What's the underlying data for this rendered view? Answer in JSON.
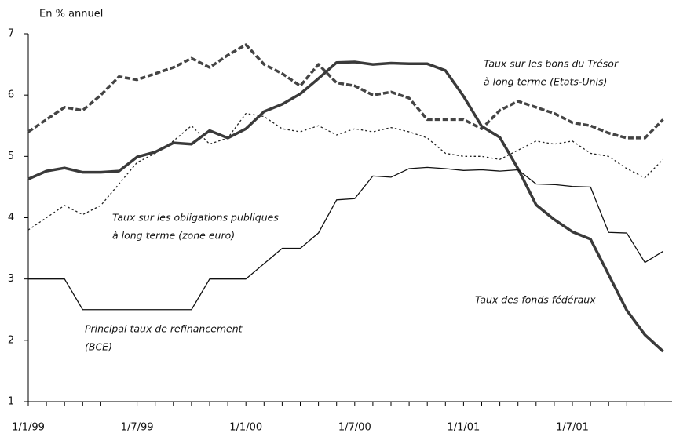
{
  "chart_data": {
    "type": "line",
    "y_label": "En % annuel",
    "categories": [
      "1/1/99",
      null,
      null,
      null,
      null,
      null,
      "1/7/99",
      null,
      null,
      null,
      null,
      null,
      "1/1/00",
      null,
      null,
      null,
      null,
      null,
      "1/7/00",
      null,
      null,
      null,
      null,
      null,
      "1/1/01",
      null,
      null,
      null,
      null,
      null,
      "1/7/01",
      null,
      null,
      null,
      null,
      null
    ],
    "ylim": [
      1,
      7
    ],
    "yticks": [
      1,
      2,
      3,
      4,
      5,
      6,
      7
    ],
    "series": [
      {
        "name": [
          "Taux sur les bons du Trésor",
          "à long terme (Etats-Unis)"
        ],
        "color": "#444444",
        "weight": "thick",
        "line_style": "dashed",
        "values": [
          5.4,
          5.6,
          5.8,
          5.75,
          6.0,
          6.3,
          6.25,
          6.35,
          6.45,
          6.6,
          6.45,
          6.65,
          6.82,
          6.5,
          6.35,
          6.15,
          6.5,
          6.2,
          6.15,
          6.0,
          6.05,
          5.95,
          5.6,
          5.6,
          5.6,
          5.45,
          5.75,
          5.9,
          5.8,
          5.7,
          5.55,
          5.5,
          5.38,
          5.3,
          5.3,
          5.6
        ]
      },
      {
        "name": [
          "Taux sur les obligations publiques",
          "à long terme (zone euro)"
        ],
        "color": "#222222",
        "weight": "thin",
        "line_style": "dotted",
        "values": [
          3.8,
          4.0,
          4.2,
          4.05,
          4.2,
          4.55,
          4.9,
          5.05,
          5.25,
          5.5,
          5.2,
          5.3,
          5.7,
          5.65,
          5.45,
          5.4,
          5.5,
          5.35,
          5.45,
          5.4,
          5.47,
          5.4,
          5.3,
          5.05,
          5.0,
          5.0,
          4.95,
          5.1,
          5.25,
          5.2,
          5.25,
          5.05,
          5.0,
          4.8,
          4.65,
          4.95
        ]
      },
      {
        "name": [
          "Taux des fonds fédéraux"
        ],
        "color": "#3a3a3a",
        "weight": "thick",
        "line_style": "solid",
        "values": [
          4.63,
          4.76,
          4.81,
          4.74,
          4.74,
          4.76,
          4.99,
          5.07,
          5.22,
          5.2,
          5.42,
          5.3,
          5.45,
          5.73,
          5.85,
          6.02,
          6.27,
          6.53,
          6.54,
          6.5,
          6.52,
          6.51,
          6.51,
          6.4,
          5.98,
          5.49,
          5.31,
          4.8,
          4.21,
          3.97,
          3.77,
          3.65,
          3.07,
          2.49,
          2.09,
          1.82
        ]
      },
      {
        "name": [
          "Principal taux de refinancement",
          "(BCE)"
        ],
        "color": "#111111",
        "weight": "thin",
        "line_style": "solid",
        "values": [
          3,
          3,
          3,
          2.5,
          2.5,
          2.5,
          2.5,
          2.5,
          2.5,
          2.5,
          3,
          3,
          3,
          3.25,
          3.5,
          3.5,
          3.75,
          4.29,
          4.31,
          4.68,
          4.66,
          4.8,
          4.82,
          4.8,
          4.77,
          4.78,
          4.76,
          4.78,
          4.55,
          4.54,
          4.51,
          4.5,
          3.76,
          3.75,
          3.27,
          3.45
        ]
      }
    ]
  }
}
